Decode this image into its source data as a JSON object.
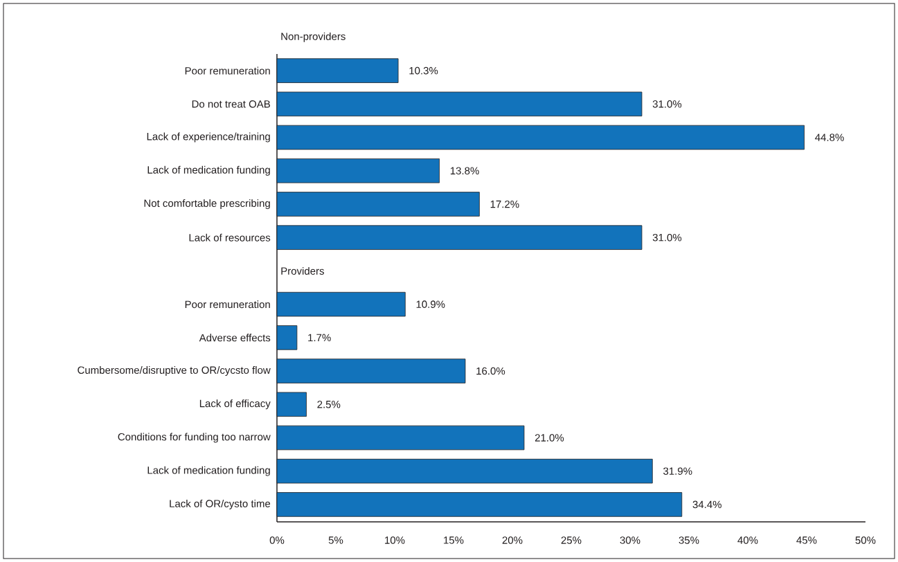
{
  "chart_data": {
    "type": "bar",
    "orientation": "horizontal",
    "categories": [
      "Poor remuneration",
      "Do not treat OAB",
      "Lack of experience/training",
      "Lack of medication funding",
      "Not comfortable prescribing",
      "Lack of resources",
      null,
      "Poor remuneration",
      "Adverse effects",
      "Cumbersome/disruptive to OR/cycsto flow",
      "Lack of efficacy",
      "Conditions for funding too narrow",
      "Lack of medication funding",
      "Lack of OR/cysto time"
    ],
    "values": [
      10.3,
      31.0,
      44.8,
      13.8,
      17.2,
      31.0,
      null,
      10.9,
      1.7,
      16.0,
      2.5,
      21.0,
      31.9,
      34.4
    ],
    "value_labels": [
      "10.3%",
      "31.0%",
      "44.8%",
      "13.8%",
      "17.2%",
      "31.0%",
      null,
      "10.9%",
      "1.7%",
      "16.0%",
      "2.5%",
      "21.0%",
      "31.9%",
      "34.4%"
    ],
    "color": "#1273bb",
    "xlim": [
      0,
      50
    ],
    "xticks": [
      {
        "value": 0,
        "label": "0%"
      },
      {
        "value": 5,
        "label": "5%"
      },
      {
        "value": 10,
        "label": "10%"
      },
      {
        "value": 15,
        "label": "15%"
      },
      {
        "value": 20,
        "label": "20%"
      },
      {
        "value": 25,
        "label": "25%"
      },
      {
        "value": 30,
        "label": "30%"
      },
      {
        "value": 35,
        "label": "35%"
      },
      {
        "value": 40,
        "label": "40%"
      },
      {
        "value": 45,
        "label": "45%"
      },
      {
        "value": 50,
        "label": "50%"
      }
    ],
    "annotations": [
      "Non-providers",
      "Providers"
    ],
    "grid": false
  }
}
